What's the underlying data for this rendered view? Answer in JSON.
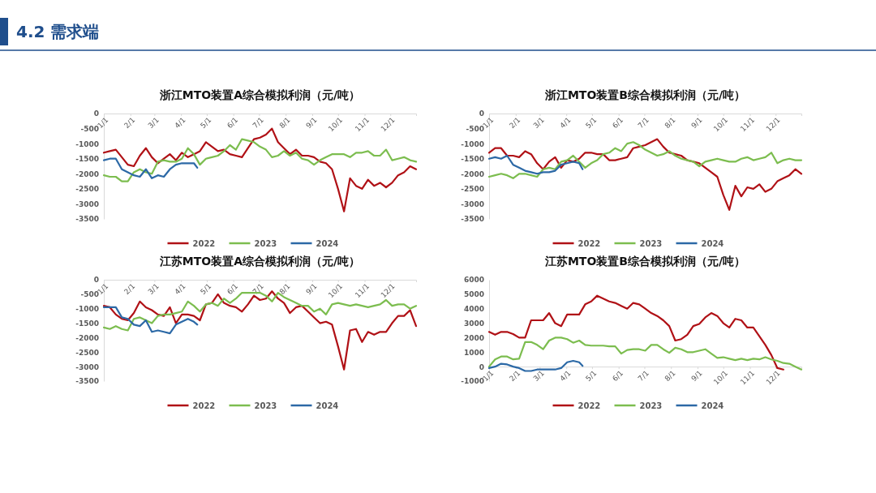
{
  "chart_data": [
    {
      "type": "line",
      "title": "浙江MTO装置A综合模拟利润（元/吨）",
      "annotations": [
        "4.2 需求端"
      ],
      "legend": "bottom",
      "line_style": "solid",
      "marker": "none",
      "xlim": [
        "--01-01",
        "--12-31"
      ],
      "xticks": [
        {
          "value": "--01-01",
          "label": "1/1"
        },
        {
          "value": "--02-01",
          "label": "2/1"
        },
        {
          "value": "--03-01",
          "label": "3/1"
        },
        {
          "value": "--04-01",
          "label": "4/1"
        },
        {
          "value": "--05-01",
          "label": "5/1"
        },
        {
          "value": "--06-01",
          "label": "6/1"
        },
        {
          "value": "--07-01",
          "label": "7/1"
        },
        {
          "value": "--08-01",
          "label": "8/1"
        },
        {
          "value": "--09-01",
          "label": "9/1"
        },
        {
          "value": "--10-01",
          "label": "10/1"
        },
        {
          "value": "--11-01",
          "label": "11/1"
        },
        {
          "value": "--12-01",
          "label": "12/1"
        }
      ],
      "ylim": [
        -3500,
        0
      ],
      "yticks": [
        0,
        -500,
        -1000,
        -1500,
        -2000,
        -2500,
        -3000,
        -3500
      ],
      "x": [
        "--01-01",
        "--01-08",
        "--01-15",
        "--01-22",
        "--01-29",
        "--02-05",
        "--02-12",
        "--02-19",
        "--02-26",
        "--03-05",
        "--03-12",
        "--03-19",
        "--03-26",
        "--04-02",
        "--04-09",
        "--04-16",
        "--04-23",
        "--04-30",
        "--05-07",
        "--05-14",
        "--05-21",
        "--05-28",
        "--06-04",
        "--06-11",
        "--06-18",
        "--06-25",
        "--07-02",
        "--07-09",
        "--07-16",
        "--07-23",
        "--07-30",
        "--08-06",
        "--08-13",
        "--08-20",
        "--08-27",
        "--09-03",
        "--09-10",
        "--09-17",
        "--09-24",
        "--10-01",
        "--10-08",
        "--10-15",
        "--10-22",
        "--10-29",
        "--11-05",
        "--11-12",
        "--11-19",
        "--11-26",
        "--12-03",
        "--12-10",
        "--12-17",
        "--12-24",
        "--12-31"
      ],
      "series": [
        {
          "name": "2022",
          "color": "#b01116",
          "values": [
            -1300,
            -1250,
            -1200,
            -1450,
            -1700,
            -1750,
            -1400,
            -1150,
            -1450,
            -1650,
            -1500,
            -1350,
            -1550,
            -1300,
            -1450,
            -1350,
            -1250,
            -950,
            -1100,
            -1250,
            -1200,
            -1350,
            -1400,
            -1450,
            -1150,
            -850,
            -800,
            -700,
            -500,
            -950,
            -1150,
            -1350,
            -1200,
            -1400,
            -1400,
            -1450,
            -1600,
            -1650,
            -1850,
            -2500,
            -3250,
            -2150,
            -2400,
            -2500,
            -2200,
            -2400,
            -2300,
            -2450,
            -2300,
            -2050,
            -1950,
            -1750,
            -1850
          ]
        },
        {
          "name": "2023",
          "color": "#7cbd4f",
          "values": [
            -2050,
            -2100,
            -2100,
            -2250,
            -2250,
            -1950,
            -1850,
            -1950,
            -2000,
            -1600,
            -1550,
            -1600,
            -1600,
            -1500,
            -1150,
            -1350,
            -1700,
            -1500,
            -1450,
            -1400,
            -1250,
            -1050,
            -1200,
            -850,
            -900,
            -950,
            -1100,
            -1200,
            -1450,
            -1400,
            -1250,
            -1400,
            -1300,
            -1500,
            -1550,
            -1700,
            -1550,
            -1450,
            -1350,
            -1350,
            -1350,
            -1450,
            -1300,
            -1300,
            -1250,
            -1400,
            -1400,
            -1200,
            -1550,
            -1500,
            -1450,
            -1550,
            -1600
          ]
        },
        {
          "name": "2024",
          "color": "#2c69a6",
          "x": [
            "--01-01",
            "--01-08",
            "--01-15",
            "--01-22",
            "--01-29",
            "--02-05",
            "--02-12",
            "--02-19",
            "--02-26",
            "--03-05",
            "--03-12",
            "--03-19",
            "--03-26",
            "--04-02",
            "--04-09",
            "--04-16",
            "--04-20"
          ],
          "values": [
            -1550,
            -1500,
            -1500,
            -1850,
            -1950,
            -2050,
            -2100,
            -1850,
            -2150,
            -2050,
            -2100,
            -1850,
            -1700,
            -1650,
            -1650,
            -1650,
            -1800
          ]
        }
      ]
    },
    {
      "type": "line",
      "title": "浙江MTO装置B综合模拟利润（元/吨）",
      "legend": "bottom",
      "line_style": "solid",
      "marker": "none",
      "xlim": [
        "--01-01",
        "--12-31"
      ],
      "xticks": [
        {
          "value": "--01-01",
          "label": "1/1"
        },
        {
          "value": "--02-01",
          "label": "2/1"
        },
        {
          "value": "--03-01",
          "label": "3/1"
        },
        {
          "value": "--04-01",
          "label": "4/1"
        },
        {
          "value": "--05-01",
          "label": "5/1"
        },
        {
          "value": "--06-01",
          "label": "6/1"
        },
        {
          "value": "--07-01",
          "label": "7/1"
        },
        {
          "value": "--08-01",
          "label": "8/1"
        },
        {
          "value": "--09-01",
          "label": "9/1"
        },
        {
          "value": "--10-01",
          "label": "10/1"
        },
        {
          "value": "--11-01",
          "label": "11/1"
        },
        {
          "value": "--12-01",
          "label": "12/1"
        }
      ],
      "ylim": [
        -3500,
        0
      ],
      "yticks": [
        0,
        -500,
        -1000,
        -1500,
        -2000,
        -2500,
        -3000,
        -3500
      ],
      "x": [
        "--01-01",
        "--01-08",
        "--01-15",
        "--01-22",
        "--01-29",
        "--02-05",
        "--02-12",
        "--02-19",
        "--02-26",
        "--03-05",
        "--03-12",
        "--03-19",
        "--03-26",
        "--04-02",
        "--04-09",
        "--04-16",
        "--04-23",
        "--04-30",
        "--05-07",
        "--05-14",
        "--05-21",
        "--05-28",
        "--06-04",
        "--06-11",
        "--06-18",
        "--06-25",
        "--07-02",
        "--07-09",
        "--07-16",
        "--07-23",
        "--07-30",
        "--08-06",
        "--08-13",
        "--08-20",
        "--08-27",
        "--09-03",
        "--09-10",
        "--09-17",
        "--09-24",
        "--10-01",
        "--10-08",
        "--10-15",
        "--10-22",
        "--10-29",
        "--11-05",
        "--11-12",
        "--11-19",
        "--11-26",
        "--12-03",
        "--12-10",
        "--12-17",
        "--12-24",
        "--12-31"
      ],
      "series": [
        {
          "name": "2022",
          "color": "#b01116",
          "values": [
            -1300,
            -1150,
            -1150,
            -1400,
            -1400,
            -1450,
            -1250,
            -1350,
            -1650,
            -1850,
            -1600,
            -1450,
            -1800,
            -1550,
            -1600,
            -1500,
            -1300,
            -1300,
            -1350,
            -1350,
            -1550,
            -1550,
            -1500,
            -1450,
            -1150,
            -1100,
            -1050,
            -950,
            -850,
            -1100,
            -1300,
            -1350,
            -1400,
            -1550,
            -1600,
            -1650,
            -1800,
            -1950,
            -2100,
            -2700,
            -3200,
            -2400,
            -2750,
            -2450,
            -2500,
            -2350,
            -2600,
            -2500,
            -2250,
            -2150,
            -2050,
            -1850,
            -2000
          ]
        },
        {
          "name": "2023",
          "color": "#7cbd4f",
          "values": [
            -2100,
            -2050,
            -2000,
            -2050,
            -2150,
            -2000,
            -2000,
            -2050,
            -2100,
            -1850,
            -1800,
            -1850,
            -1600,
            -1550,
            -1400,
            -1600,
            -1800,
            -1650,
            -1550,
            -1350,
            -1300,
            -1150,
            -1250,
            -1000,
            -950,
            -1050,
            -1200,
            -1300,
            -1400,
            -1350,
            -1250,
            -1400,
            -1500,
            -1550,
            -1600,
            -1750,
            -1600,
            -1550,
            -1500,
            -1550,
            -1600,
            -1600,
            -1500,
            -1450,
            -1550,
            -1500,
            -1450,
            -1300,
            -1650,
            -1550,
            -1500,
            -1550,
            -1550
          ]
        },
        {
          "name": "2024",
          "color": "#2c69a6",
          "x": [
            "--01-01",
            "--01-08",
            "--01-15",
            "--01-22",
            "--01-29",
            "--02-05",
            "--02-12",
            "--02-19",
            "--02-26",
            "--03-05",
            "--03-12",
            "--03-19",
            "--03-26",
            "--04-02",
            "--04-09",
            "--04-16",
            "--04-20"
          ],
          "values": [
            -1500,
            -1450,
            -1500,
            -1400,
            -1700,
            -1800,
            -1900,
            -1950,
            -2000,
            -1950,
            -1950,
            -1900,
            -1700,
            -1650,
            -1600,
            -1650,
            -1850
          ]
        }
      ]
    },
    {
      "type": "line",
      "title": "江苏MTO装置A综合模拟利润（元/吨）",
      "legend": "bottom",
      "line_style": "solid",
      "marker": "none",
      "xlim": [
        "--01-01",
        "--12-31"
      ],
      "xticks": [
        {
          "value": "--01-01",
          "label": "1/1"
        },
        {
          "value": "--02-01",
          "label": "2/1"
        },
        {
          "value": "--03-01",
          "label": "3/1"
        },
        {
          "value": "--04-01",
          "label": "4/1"
        },
        {
          "value": "--05-01",
          "label": "5/1"
        },
        {
          "value": "--06-01",
          "label": "6/1"
        },
        {
          "value": "--07-01",
          "label": "7/1"
        },
        {
          "value": "--08-01",
          "label": "8/1"
        },
        {
          "value": "--09-01",
          "label": "9/1"
        },
        {
          "value": "--10-01",
          "label": "10/1"
        },
        {
          "value": "--11-01",
          "label": "11/1"
        },
        {
          "value": "--12-01",
          "label": "12/1"
        }
      ],
      "ylim": [
        -3500,
        0
      ],
      "yticks": [
        0,
        -500,
        -1000,
        -1500,
        -2000,
        -2500,
        -3000,
        -3500
      ],
      "x": [
        "--01-01",
        "--01-08",
        "--01-15",
        "--01-22",
        "--01-29",
        "--02-05",
        "--02-12",
        "--02-19",
        "--02-26",
        "--03-05",
        "--03-12",
        "--03-19",
        "--03-26",
        "--04-02",
        "--04-09",
        "--04-16",
        "--04-23",
        "--04-30",
        "--05-07",
        "--05-14",
        "--05-21",
        "--05-28",
        "--06-04",
        "--06-11",
        "--06-18",
        "--06-25",
        "--07-02",
        "--07-09",
        "--07-16",
        "--07-23",
        "--07-30",
        "--08-06",
        "--08-13",
        "--08-20",
        "--08-27",
        "--09-03",
        "--09-10",
        "--09-17",
        "--09-24",
        "--10-01",
        "--10-08",
        "--10-15",
        "--10-22",
        "--10-29",
        "--11-05",
        "--11-12",
        "--11-19",
        "--11-26",
        "--12-03",
        "--12-10",
        "--12-17",
        "--12-24",
        "--12-31"
      ],
      "series": [
        {
          "name": "2022",
          "color": "#b01116",
          "values": [
            -900,
            -950,
            -1200,
            -1350,
            -1400,
            -1150,
            -750,
            -950,
            -1050,
            -1200,
            -1250,
            -950,
            -1500,
            -1200,
            -1200,
            -1250,
            -1400,
            -850,
            -800,
            -500,
            -800,
            -900,
            -950,
            -1100,
            -850,
            -550,
            -700,
            -650,
            -400,
            -650,
            -800,
            -1150,
            -950,
            -900,
            -1100,
            -1300,
            -1500,
            -1450,
            -1550,
            -2300,
            -3100,
            -1750,
            -1700,
            -2150,
            -1800,
            -1900,
            -1800,
            -1800,
            -1500,
            -1250,
            -1250,
            -1050,
            -1600
          ]
        },
        {
          "name": "2023",
          "color": "#7cbd4f",
          "values": [
            -1650,
            -1700,
            -1600,
            -1700,
            -1750,
            -1350,
            -1300,
            -1400,
            -1500,
            -1250,
            -1200,
            -1200,
            -1150,
            -1100,
            -750,
            -900,
            -1100,
            -850,
            -800,
            -900,
            -650,
            -800,
            -650,
            -450,
            -450,
            -450,
            -450,
            -550,
            -750,
            -450,
            -600,
            -700,
            -800,
            -900,
            -900,
            -1100,
            -1000,
            -1200,
            -850,
            -800,
            -850,
            -900,
            -850,
            -900,
            -950,
            -900,
            -850,
            -700,
            -900,
            -850,
            -850,
            -1000,
            -900
          ]
        },
        {
          "name": "2024",
          "color": "#2c69a6",
          "x": [
            "--01-01",
            "--01-08",
            "--01-15",
            "--01-22",
            "--01-29",
            "--02-05",
            "--02-12",
            "--02-19",
            "--02-26",
            "--03-05",
            "--03-12",
            "--03-19",
            "--03-26",
            "--04-02",
            "--04-09",
            "--04-16",
            "--04-20"
          ],
          "values": [
            -950,
            -950,
            -950,
            -1300,
            -1350,
            -1550,
            -1600,
            -1400,
            -1800,
            -1750,
            -1800,
            -1850,
            -1550,
            -1450,
            -1350,
            -1450,
            -1550
          ]
        }
      ]
    },
    {
      "type": "line",
      "title": "江苏MTO装置B综合模拟利润（元/吨）",
      "legend": "bottom",
      "line_style": "solid",
      "marker": "none",
      "xlim": [
        "--01-01",
        "--12-31"
      ],
      "xticks": [
        {
          "value": "--01-01",
          "label": "1/1"
        },
        {
          "value": "--02-01",
          "label": "2/1"
        },
        {
          "value": "--03-01",
          "label": "3/1"
        },
        {
          "value": "--04-01",
          "label": "4/1"
        },
        {
          "value": "--05-01",
          "label": "5/1"
        },
        {
          "value": "--06-01",
          "label": "6/1"
        },
        {
          "value": "--07-01",
          "label": "7/1"
        },
        {
          "value": "--08-01",
          "label": "8/1"
        },
        {
          "value": "--09-01",
          "label": "9/1"
        },
        {
          "value": "--10-01",
          "label": "10/1"
        },
        {
          "value": "--11-01",
          "label": "11/1"
        },
        {
          "value": "--12-01",
          "label": "12/1"
        }
      ],
      "ylim": [
        -1000,
        6000
      ],
      "yticks": [
        6000,
        5000,
        4000,
        3000,
        2000,
        1000,
        0,
        -1000
      ],
      "x": [
        "--01-01",
        "--01-08",
        "--01-15",
        "--01-22",
        "--01-29",
        "--02-05",
        "--02-12",
        "--02-19",
        "--02-26",
        "--03-05",
        "--03-12",
        "--03-19",
        "--03-26",
        "--04-02",
        "--04-09",
        "--04-16",
        "--04-23",
        "--04-30",
        "--05-07",
        "--05-14",
        "--05-21",
        "--05-28",
        "--06-04",
        "--06-11",
        "--06-18",
        "--06-25",
        "--07-02",
        "--07-09",
        "--07-16",
        "--07-23",
        "--07-30",
        "--08-06",
        "--08-13",
        "--08-20",
        "--08-27",
        "--09-03",
        "--09-10",
        "--09-17",
        "--09-24",
        "--10-01",
        "--10-08",
        "--10-15",
        "--10-22",
        "--10-29",
        "--11-05",
        "--11-12",
        "--11-19",
        "--11-26",
        "--12-03",
        "--12-10",
        "--12-17",
        "--12-24",
        "--12-31"
      ],
      "series": [
        {
          "name": "2022",
          "color": "#b01116",
          "values": [
            2400,
            2200,
            2400,
            2400,
            2250,
            2000,
            2000,
            3200,
            3200,
            3200,
            3700,
            3000,
            2800,
            3600,
            3600,
            3600,
            4300,
            4500,
            4900,
            4700,
            4500,
            4400,
            4200,
            4000,
            4400,
            4300,
            4000,
            3700,
            3500,
            3200,
            2800,
            1800,
            1900,
            2200,
            2800,
            2950,
            3400,
            3700,
            3500,
            3000,
            2700,
            3300,
            3200,
            2700,
            2700,
            2100,
            1500,
            800,
            -100,
            -200,
            null,
            null,
            null
          ]
        },
        {
          "name": "2023",
          "color": "#7cbd4f",
          "values": [
            0,
            500,
            700,
            700,
            500,
            550,
            1700,
            1700,
            1500,
            1200,
            1800,
            2000,
            2000,
            1900,
            1650,
            1800,
            1500,
            1450,
            1450,
            1450,
            1400,
            1400,
            900,
            1150,
            1200,
            1200,
            1100,
            1500,
            1500,
            1200,
            950,
            1300,
            1200,
            1000,
            1000,
            1100,
            1200,
            900,
            600,
            650,
            550,
            450,
            550,
            450,
            550,
            500,
            650,
            500,
            400,
            250,
            200,
            0,
            -200
          ]
        },
        {
          "name": "2024",
          "color": "#2c69a6",
          "x": [
            "--01-01",
            "--01-08",
            "--01-15",
            "--01-22",
            "--01-29",
            "--02-05",
            "--02-12",
            "--02-19",
            "--02-26",
            "--03-05",
            "--03-12",
            "--03-19",
            "--03-26",
            "--04-02",
            "--04-09",
            "--04-16",
            "--04-20"
          ],
          "values": [
            -100,
            0,
            200,
            150,
            0,
            -100,
            -300,
            -300,
            -200,
            -200,
            -200,
            -200,
            -100,
            300,
            400,
            300,
            50
          ]
        }
      ]
    }
  ]
}
